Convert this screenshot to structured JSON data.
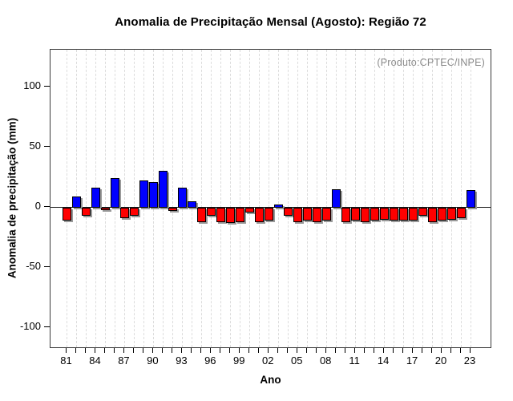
{
  "chart_data": {
    "type": "bar",
    "title": "Anomalia de Precipitação Mensal (Agosto): Região 72",
    "annotation": "(Produto:CPTEC/INPE)",
    "xlabel": "Ano",
    "ylabel": "Anomalia de precipitação (mm)",
    "x": [
      1981,
      1982,
      1983,
      1984,
      1985,
      1986,
      1987,
      1988,
      1989,
      1990,
      1991,
      1992,
      1993,
      1994,
      1995,
      1996,
      1997,
      1998,
      1999,
      2000,
      2001,
      2002,
      2003,
      2004,
      2005,
      2006,
      2007,
      2008,
      2009,
      2010,
      2011,
      2012,
      2013,
      2014,
      2015,
      2016,
      2017,
      2018,
      2019,
      2020,
      2021,
      2022,
      2023
    ],
    "values": [
      -10,
      9,
      -6,
      16,
      -1,
      24,
      -8,
      -6,
      22,
      21,
      30,
      -2,
      16,
      5,
      -11,
      -6,
      -11,
      -12,
      -11,
      -3,
      -11,
      -10,
      2,
      -6,
      -11,
      -10,
      -11,
      -10,
      15,
      -11,
      -10,
      -11,
      -10,
      -9,
      -10,
      -10,
      -10,
      -6,
      -11,
      -10,
      -9,
      -8,
      14
    ],
    "ylim": [
      -117,
      131
    ],
    "yticks": [
      -100,
      -50,
      0,
      50,
      100
    ],
    "xtick_step_years": 3,
    "xtick_labels": [
      "81",
      "84",
      "87",
      "90",
      "93",
      "96",
      "99",
      "02",
      "05",
      "08",
      "11",
      "14",
      "17",
      "20",
      "23"
    ],
    "grid": "vertical-dashed-per-year",
    "legend": "none",
    "colors": {
      "positive_bar": "#0000ff",
      "negative_bar": "#ff0000",
      "bar_border": "#000000",
      "bar_shadow": "#999999",
      "gridline": "#dcdcdc",
      "zero_line": "#1a1a1a",
      "annotation_text": "#8a8a8a",
      "axis_text": "#000000"
    }
  }
}
